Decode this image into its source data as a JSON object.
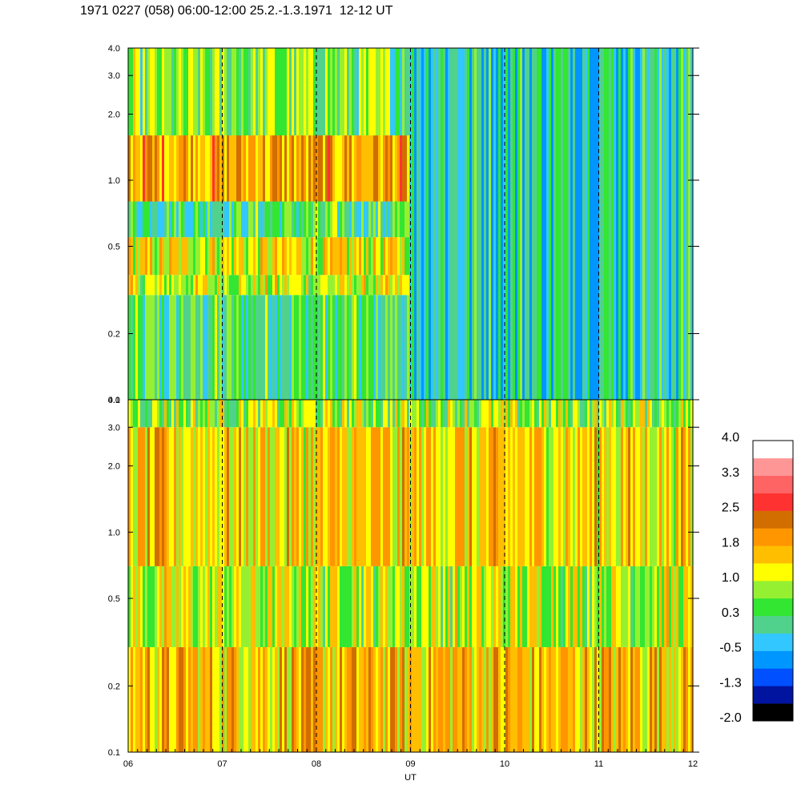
{
  "title": "1971 0227 (058) 06:00-12:00 25.2.-1.3.1971  12-12 UT",
  "chart_data": [
    {
      "type": "heatmap",
      "panel": "top",
      "x_range": [
        "06",
        "12"
      ],
      "y_scale": "log",
      "y_range": [
        0.1,
        4.0
      ],
      "y_ticks": [
        "0.1",
        "0.2",
        "0.5",
        "1.0",
        "2.0",
        "3.0",
        "4.0"
      ],
      "x_gridlines_dashed": [
        "07",
        "08",
        "09",
        "10",
        "11"
      ],
      "bands": [
        {
          "y_from": 0.1,
          "y_to": 0.3,
          "x_from": "06",
          "x_to": "09",
          "level": 0.3
        },
        {
          "y_from": 0.3,
          "y_to": 0.37,
          "x_from": "06",
          "x_to": "09",
          "level": 1.0
        },
        {
          "y_from": 0.37,
          "y_to": 0.55,
          "x_from": "06",
          "x_to": "09",
          "level": 1.2
        },
        {
          "y_from": 0.55,
          "y_to": 0.8,
          "x_from": "06",
          "x_to": "09",
          "level": 0.3
        },
        {
          "y_from": 0.8,
          "y_to": 1.6,
          "x_from": "06",
          "x_to": "09",
          "level": 1.8
        },
        {
          "y_from": 1.6,
          "y_to": 4.0,
          "x_from": "06",
          "x_to": "09",
          "level": 0.6
        },
        {
          "y_from": 0.1,
          "y_to": 4.0,
          "x_from": "09",
          "x_to": "12",
          "level": 0.0
        }
      ]
    },
    {
      "type": "heatmap",
      "panel": "bottom",
      "x_range": [
        "06",
        "12"
      ],
      "y_scale": "log",
      "y_range": [
        0.1,
        4.0
      ],
      "y_ticks": [
        "0.1",
        "0.2",
        "0.5",
        "1.0",
        "2.0",
        "3.0",
        "4.0"
      ],
      "x_ticks": [
        "06",
        "07",
        "08",
        "09",
        "10",
        "11",
        "12"
      ],
      "xlabel": "UT",
      "x_gridlines_dashed": [
        "07",
        "08",
        "09",
        "10",
        "11"
      ],
      "bands": [
        {
          "y_from": 0.1,
          "y_to": 0.3,
          "x_from": "06",
          "x_to": "12",
          "level": 1.6
        },
        {
          "y_from": 0.3,
          "y_to": 0.7,
          "x_from": "06",
          "x_to": "12",
          "level": 1.0
        },
        {
          "y_from": 0.7,
          "y_to": 3.0,
          "x_from": "06",
          "x_to": "12",
          "level": 1.4
        },
        {
          "y_from": 3.0,
          "y_to": 4.0,
          "x_from": "06",
          "x_to": "12",
          "level": 0.8
        }
      ]
    }
  ],
  "colorbar": {
    "labels": [
      "4.0",
      "3.3",
      "2.5",
      "1.8",
      "1.0",
      "0.3",
      "-0.5",
      "-1.3",
      "-2.0"
    ],
    "colors": [
      "#000000",
      "#0014a0",
      "#0050ff",
      "#0096ff",
      "#32c8ff",
      "#50d28c",
      "#32e632",
      "#96f032",
      "#ffff00",
      "#ffbe00",
      "#ff9600",
      "#d26e00",
      "#ff3232",
      "#ff6464",
      "#ff9696",
      "#ffffff"
    ]
  }
}
